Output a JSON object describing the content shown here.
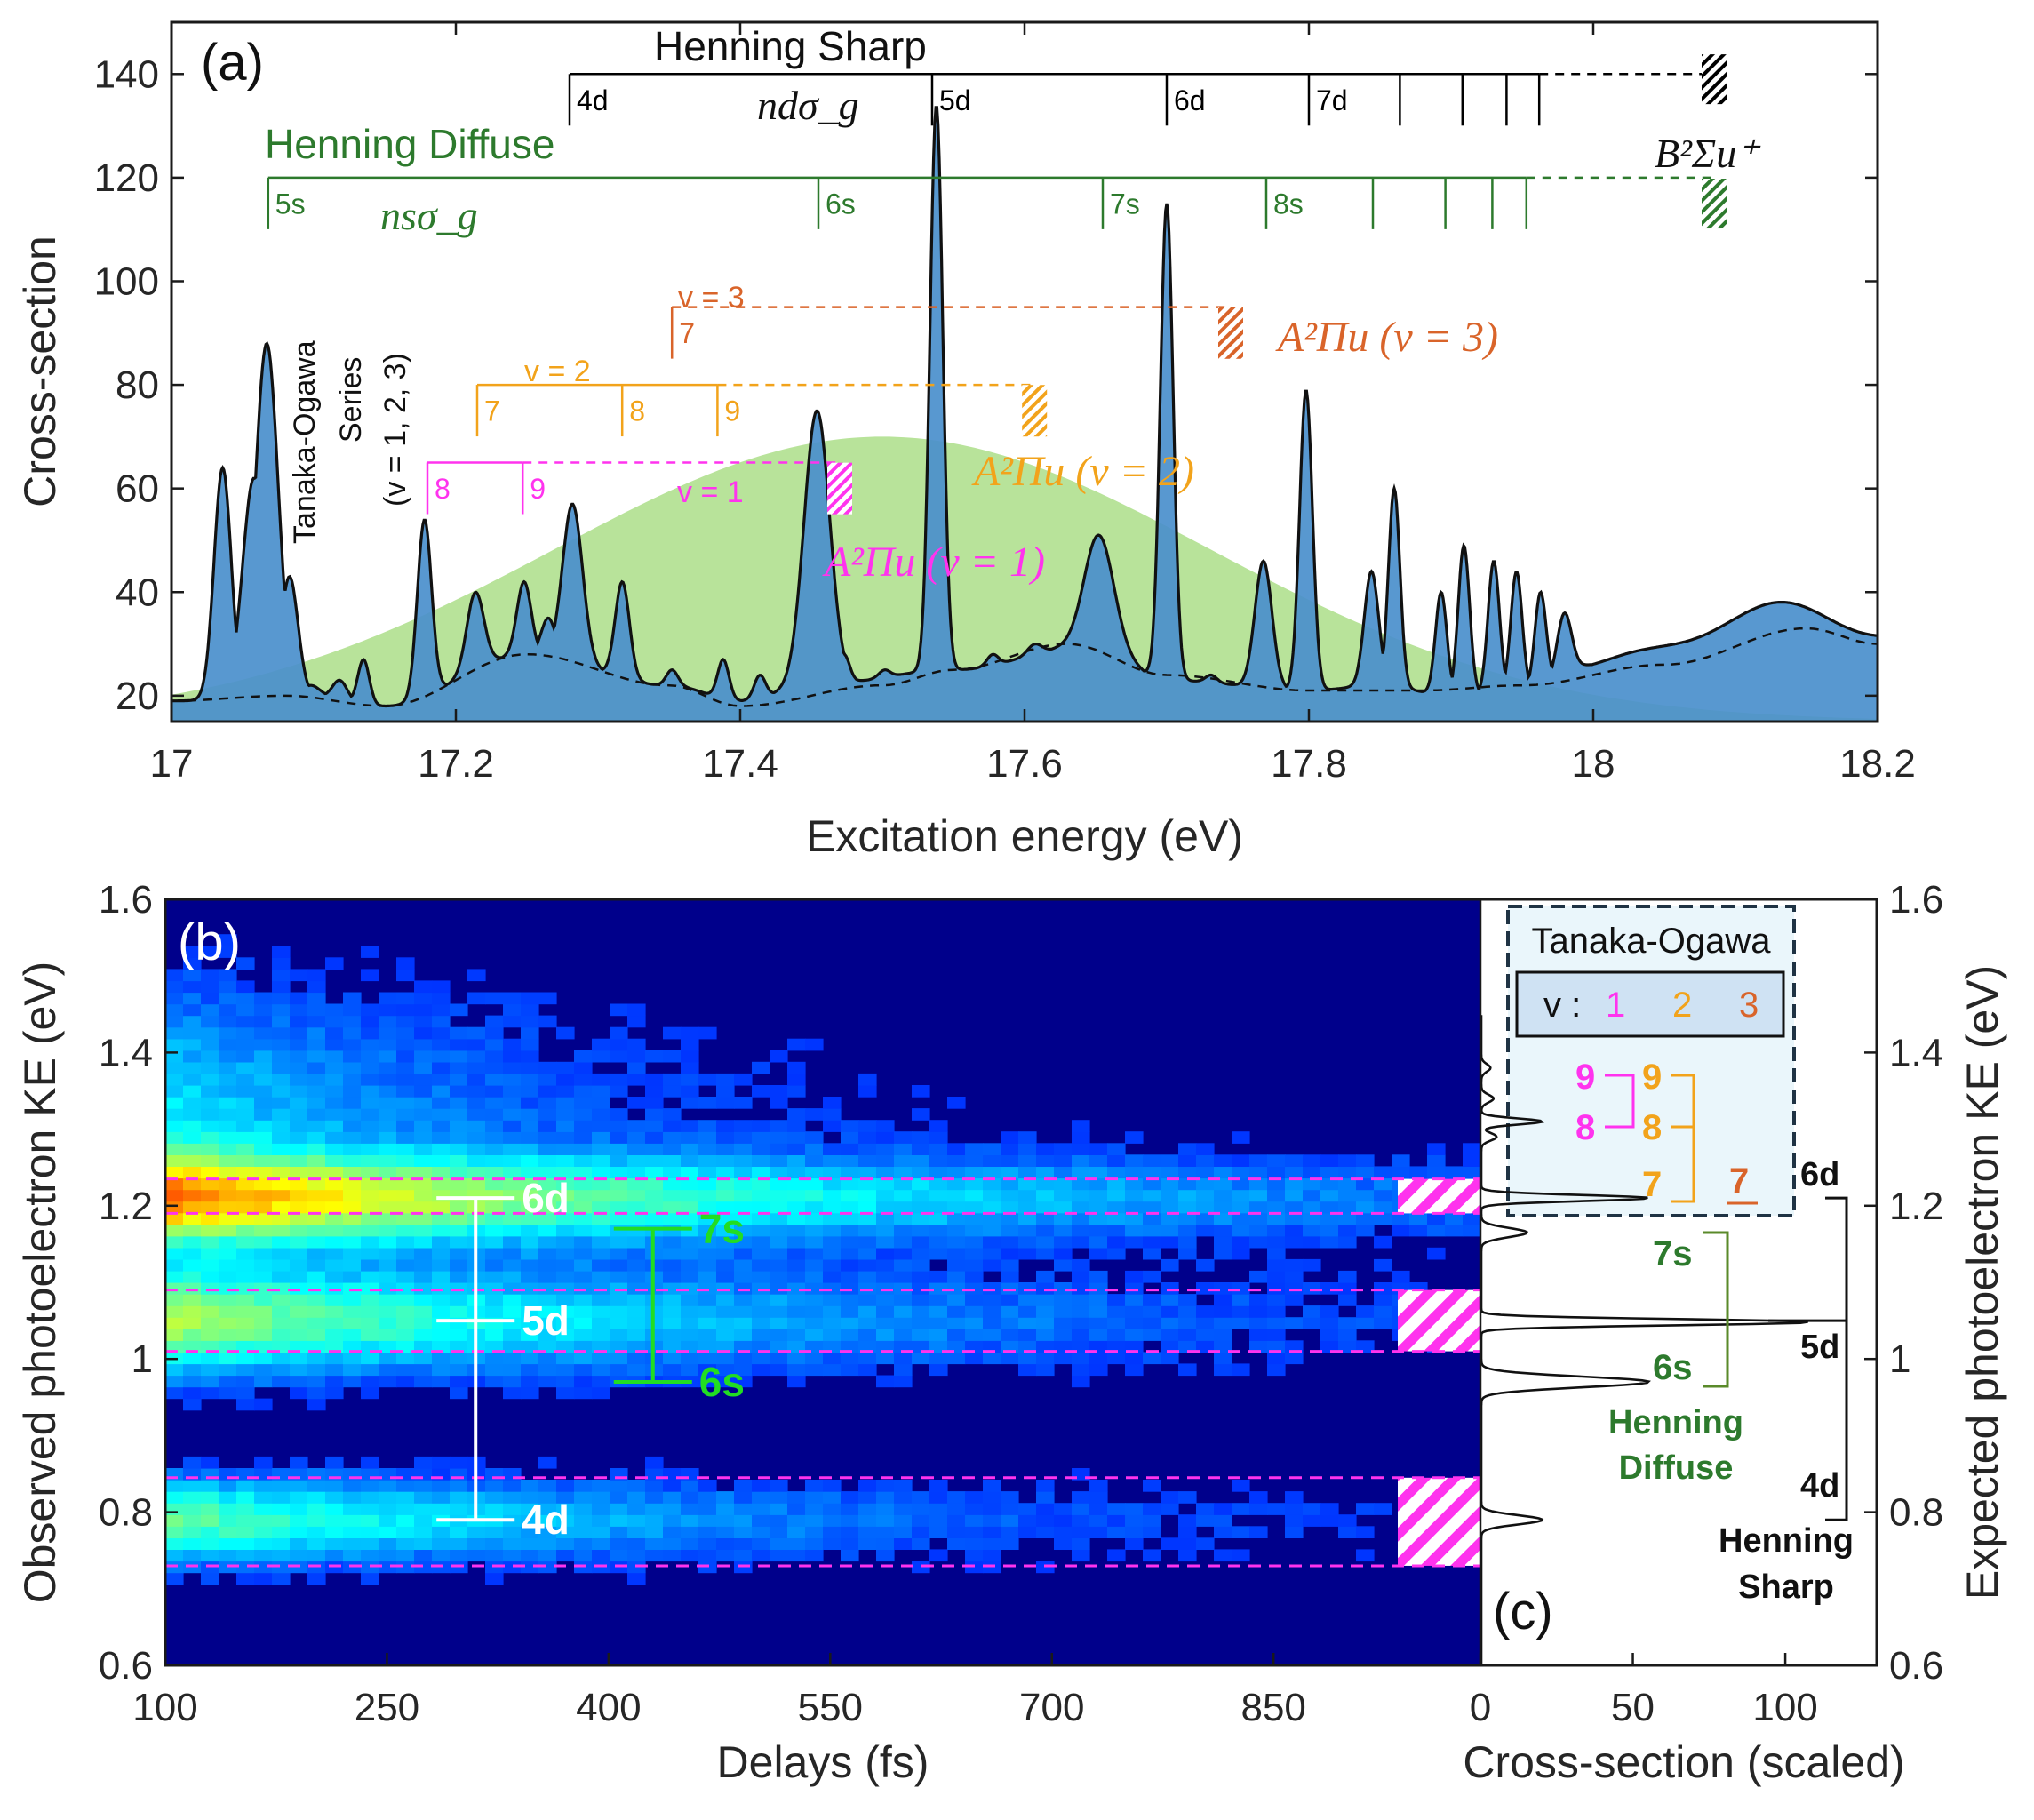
{
  "chart_data": [
    {
      "panel": "(a)",
      "type": "line",
      "xlabel": "Excitation energy (eV)",
      "ylabel": "Cross-section",
      "xlim": [
        17,
        18.2
      ],
      "ylim": [
        15,
        150
      ],
      "xticks": [
        "17",
        "17.2",
        "17.4",
        "17.6",
        "17.8",
        "18",
        "18.2"
      ],
      "yticks": [
        "20",
        "40",
        "60",
        "80",
        "100",
        "120",
        "140"
      ],
      "peaks": [
        {
          "x": 17.036,
          "y": 64,
          "w": 0.006
        },
        {
          "x": 17.058,
          "y": 62,
          "w": 0.008
        },
        {
          "x": 17.067,
          "y": 88,
          "w": 0.008
        },
        {
          "x": 17.083,
          "y": 43,
          "w": 0.006
        },
        {
          "x": 17.098,
          "y": 22,
          "w": 0.006
        },
        {
          "x": 17.118,
          "y": 23,
          "w": 0.005
        },
        {
          "x": 17.135,
          "y": 27,
          "w": 0.004
        },
        {
          "x": 17.178,
          "y": 54,
          "w": 0.005
        },
        {
          "x": 17.214,
          "y": 40,
          "w": 0.006
        },
        {
          "x": 17.248,
          "y": 42,
          "w": 0.005
        },
        {
          "x": 17.265,
          "y": 35,
          "w": 0.005
        },
        {
          "x": 17.282,
          "y": 57,
          "w": 0.007
        },
        {
          "x": 17.317,
          "y": 42,
          "w": 0.005
        },
        {
          "x": 17.352,
          "y": 25,
          "w": 0.004
        },
        {
          "x": 17.388,
          "y": 27,
          "w": 0.004
        },
        {
          "x": 17.414,
          "y": 24,
          "w": 0.004
        },
        {
          "x": 17.454,
          "y": 75,
          "w": 0.009
        },
        {
          "x": 17.473,
          "y": 28,
          "w": 0.004
        },
        {
          "x": 17.502,
          "y": 25,
          "w": 0.004
        },
        {
          "x": 17.538,
          "y": 134,
          "w": 0.0045
        },
        {
          "x": 17.578,
          "y": 28,
          "w": 0.004
        },
        {
          "x": 17.608,
          "y": 30,
          "w": 0.005
        },
        {
          "x": 17.652,
          "y": 51,
          "w": 0.01
        },
        {
          "x": 17.7,
          "y": 115,
          "w": 0.0045
        },
        {
          "x": 17.731,
          "y": 24,
          "w": 0.004
        },
        {
          "x": 17.768,
          "y": 46,
          "w": 0.006
        },
        {
          "x": 17.798,
          "y": 79,
          "w": 0.0045
        },
        {
          "x": 17.844,
          "y": 44,
          "w": 0.005
        },
        {
          "x": 17.86,
          "y": 60,
          "w": 0.004
        },
        {
          "x": 17.893,
          "y": 40,
          "w": 0.004
        },
        {
          "x": 17.909,
          "y": 49,
          "w": 0.004
        },
        {
          "x": 17.93,
          "y": 46,
          "w": 0.004
        },
        {
          "x": 17.946,
          "y": 44,
          "w": 0.004
        },
        {
          "x": 17.963,
          "y": 40,
          "w": 0.004
        },
        {
          "x": 17.98,
          "y": 36,
          "w": 0.005
        }
      ],
      "baseline": [
        [
          17.0,
          19
        ],
        [
          17.1,
          20
        ],
        [
          17.15,
          18
        ],
        [
          17.25,
          28
        ],
        [
          17.35,
          22
        ],
        [
          17.4,
          19
        ],
        [
          17.45,
          22
        ],
        [
          17.55,
          25
        ],
        [
          17.65,
          30
        ],
        [
          17.7,
          23
        ],
        [
          17.8,
          21
        ],
        [
          17.85,
          22
        ],
        [
          17.9,
          20
        ],
        [
          17.95,
          21
        ],
        [
          18.0,
          26
        ],
        [
          18.1,
          31
        ],
        [
          18.2,
          28
        ]
      ],
      "green_envelope": {
        "center": 17.5,
        "peak": 70,
        "sigma": 0.23
      },
      "dashed_baseline": [
        [
          17.0,
          19
        ],
        [
          17.08,
          20
        ],
        [
          17.15,
          18
        ],
        [
          17.25,
          28
        ],
        [
          17.35,
          22
        ],
        [
          17.4,
          18
        ],
        [
          17.5,
          22
        ],
        [
          17.55,
          25
        ],
        [
          17.63,
          30
        ],
        [
          17.7,
          24
        ],
        [
          17.8,
          21
        ],
        [
          17.88,
          21
        ],
        [
          17.95,
          22
        ],
        [
          18.05,
          26
        ],
        [
          18.15,
          33
        ],
        [
          18.2,
          30
        ]
      ],
      "henning_sharp": {
        "title": "Henning Sharp",
        "orbital": "ndσ_g",
        "x": [
          17.28,
          17.535,
          17.7,
          17.8,
          17.864,
          17.908,
          17.939,
          17.962
        ],
        "labels": [
          "4d",
          "5d",
          "6d",
          "7d",
          "",
          "",
          "",
          ""
        ],
        "limit_x": 18.085,
        "limit_label": "B²Σu⁺",
        "y": 140
      },
      "henning_diffuse": {
        "title": "Henning Diffuse",
        "orbital": "nsσ_g",
        "x": [
          17.068,
          17.455,
          17.655,
          17.77,
          17.845,
          17.896,
          17.929,
          17.953
        ],
        "labels": [
          "5s",
          "6s",
          "7s",
          "8s",
          "",
          "",
          "",
          ""
        ],
        "limit_x": 18.085,
        "y": 120
      },
      "tanaka_ogawa": {
        "series_label": "Tanaka-Ogawa Series",
        "v_label": "(v = 1, 2, 3)",
        "v1": {
          "label": "v = 1",
          "x": [
            17.18,
            17.247
          ],
          "labels": [
            "8",
            "9"
          ],
          "limit_x": 17.47,
          "y": 65,
          "limit_label": "A²Πu (v = 1)"
        },
        "v2": {
          "label": "v = 2",
          "x": [
            17.215,
            17.317,
            17.384
          ],
          "labels": [
            "7",
            "8",
            "9"
          ],
          "limit_x": 17.607,
          "y": 80,
          "limit_label": "A²Πu (v = 2)"
        },
        "v3": {
          "label": "v = 3",
          "x": [
            17.352
          ],
          "labels": [
            "7"
          ],
          "limit_x": 17.745,
          "y": 95,
          "limit_label": "A²Πu (v = 3)"
        }
      },
      "colors": {
        "fill": "#4a8fcc",
        "green": "#b8e39a",
        "sharp": "#000000",
        "diffuse": "#2d7a2d",
        "v1": "#ff33ee",
        "v2": "#f2a31b",
        "v3": "#d9642a"
      }
    },
    {
      "panel": "(b)",
      "type": "heatmap",
      "xlabel": "Delays (fs)",
      "ylabel": "Observed photoelectron KE (eV)",
      "xlim": [
        100,
        990
      ],
      "ylim": [
        0.6,
        1.6
      ],
      "xticks": [
        "100",
        "250",
        "400",
        "550",
        "700",
        "850"
      ],
      "yticks": [
        "0.6",
        "0.8",
        "1",
        "1.2",
        "1.4",
        "1.6"
      ],
      "bands": [
        {
          "ke": 1.21,
          "amp": 1.0,
          "width": 0.04,
          "decay_fs": 550
        },
        {
          "ke": 1.05,
          "amp": 0.8,
          "width": 0.05,
          "decay_fs": 450
        },
        {
          "ke": 0.79,
          "amp": 0.7,
          "width": 0.04,
          "decay_fs": 400
        },
        {
          "ke": 1.32,
          "amp": 0.45,
          "width": 0.12,
          "decay_fs": 250
        }
      ],
      "magenta_lines_ke": [
        1.235,
        1.19,
        1.09,
        1.01,
        0.845,
        0.73
      ],
      "hatched_bands": [
        [
          1.19,
          1.235
        ],
        [
          1.01,
          1.09
        ],
        [
          0.73,
          0.845
        ]
      ],
      "sharp_marker": {
        "ke": [
          0.79,
          1.05,
          1.21
        ],
        "labels": [
          "4d",
          "5d",
          "6d"
        ],
        "delay_fs": 310
      },
      "diffuse_marker": {
        "ke": [
          0.97,
          1.17
        ],
        "labels": [
          "6s",
          "7s"
        ],
        "delay_fs": 430
      }
    },
    {
      "panel": "(c)",
      "type": "line",
      "xlabel": "Cross-section (scaled)",
      "ylabel": "Expected photoelectron KE (eV)",
      "xlim": [
        0,
        130
      ],
      "ylim": [
        0.6,
        1.6
      ],
      "xticks": [
        "0",
        "50",
        "100"
      ],
      "yticks": [
        "0.6",
        "0.8",
        "1",
        "1.2",
        "1.4",
        "1.6"
      ],
      "peaks": [
        {
          "ke": 0.79,
          "y": 20,
          "w": 0.006
        },
        {
          "ke": 0.97,
          "y": 55,
          "w": 0.007
        },
        {
          "ke": 1.048,
          "y": 108,
          "w": 0.004
        },
        {
          "ke": 1.165,
          "y": 15,
          "w": 0.006
        },
        {
          "ke": 1.21,
          "y": 55,
          "w": 0.004
        },
        {
          "ke": 1.31,
          "y": 20,
          "w": 0.004
        },
        {
          "ke": 1.29,
          "y": 5,
          "w": 0.005
        },
        {
          "ke": 1.34,
          "y": 4,
          "w": 0.005
        },
        {
          "ke": 1.38,
          "y": 3,
          "w": 0.005
        }
      ],
      "legend_title": "Tanaka-Ogawa",
      "legend_v": "v :",
      "legend_v_values": [
        "1",
        "2",
        "3"
      ],
      "to_labels": {
        "v1": [
          "9",
          "8"
        ],
        "v2": [
          "9",
          "8",
          "7"
        ],
        "v3": [
          "7"
        ]
      },
      "diffuse": {
        "labels": [
          "7s",
          "6s"
        ],
        "title_1": "Henning",
        "title_2": "Diffuse"
      },
      "sharp": {
        "labels": [
          "6d",
          "5d",
          "4d"
        ],
        "title_1": "Henning",
        "title_2": "Sharp"
      },
      "panel_label": "(c)"
    }
  ]
}
